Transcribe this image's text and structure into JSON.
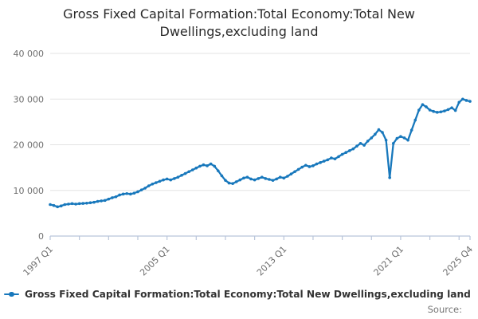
{
  "title": "Gross Fixed Capital Formation:Total Economy:Total New Dwellings,excluding land",
  "legend": {
    "label": "Gross Fixed Capital Formation:Total Economy:Total New Dwellings,excluding land"
  },
  "source_label": "Source:",
  "colors": {
    "line": "#1878bc",
    "grid": "#e3e3e3",
    "axis": "#b9c5da",
    "tick_label": "#6e6e6e",
    "title_text": "#2a2a2a",
    "legend_text": "#333333",
    "source_text": "#757575",
    "background": "#ffffff"
  },
  "chart_data": {
    "type": "line",
    "title": "Gross Fixed Capital Formation:Total Economy:Total New Dwellings,excluding land",
    "series_name": "Gross Fixed Capital Formation:Total Economy:Total New Dwellings,excluding land",
    "x_start": "1997 Q1",
    "x_end": "2025 Q4",
    "x_frequency": "quarterly",
    "ylim": [
      0,
      40000
    ],
    "grid": "horizontal",
    "legend_position": "bottom-left",
    "y_ticks": [
      {
        "value": 0,
        "label": "0"
      },
      {
        "value": 10000,
        "label": "10 000"
      },
      {
        "value": 20000,
        "label": "20 000"
      },
      {
        "value": 30000,
        "label": "30 000"
      },
      {
        "value": 40000,
        "label": "40 000"
      }
    ],
    "x_tick_labels": [
      {
        "index": 0,
        "label": "1997 Q1"
      },
      {
        "index": 32,
        "label": "2005 Q1"
      },
      {
        "index": 64,
        "label": "2013 Q1"
      },
      {
        "index": 96,
        "label": "2021 Q1"
      },
      {
        "index": 115,
        "label": "2025 Q4"
      }
    ],
    "x_minor_tick_indices": [
      8,
      16,
      24,
      40,
      48,
      56,
      72,
      80,
      88,
      104,
      112
    ],
    "values": [
      6900,
      6700,
      6400,
      6600,
      6900,
      7000,
      7100,
      7000,
      7100,
      7150,
      7200,
      7300,
      7400,
      7600,
      7700,
      7800,
      8100,
      8400,
      8600,
      9000,
      9200,
      9300,
      9200,
      9400,
      9700,
      10100,
      10500,
      11000,
      11400,
      11700,
      12000,
      12300,
      12500,
      12300,
      12600,
      12900,
      13300,
      13700,
      14100,
      14500,
      14900,
      15300,
      15600,
      15400,
      15800,
      15300,
      14300,
      13200,
      12200,
      11600,
      11500,
      11900,
      12300,
      12700,
      12900,
      12500,
      12300,
      12600,
      12900,
      12600,
      12400,
      12200,
      12500,
      12900,
      12700,
      13100,
      13600,
      14100,
      14600,
      15100,
      15500,
      15200,
      15400,
      15800,
      16100,
      16400,
      16700,
      17100,
      16900,
      17400,
      17900,
      18300,
      18700,
      19100,
      19700,
      20300,
      19900,
      20800,
      21500,
      22300,
      23300,
      22700,
      21000,
      12800,
      20300,
      21400,
      21800,
      21500,
      21000,
      23200,
      25400,
      27600,
      28800,
      28300,
      27600,
      27300,
      27100,
      27200,
      27400,
      27700,
      28100,
      27500,
      29300,
      30000,
      29700,
      29500
    ]
  }
}
